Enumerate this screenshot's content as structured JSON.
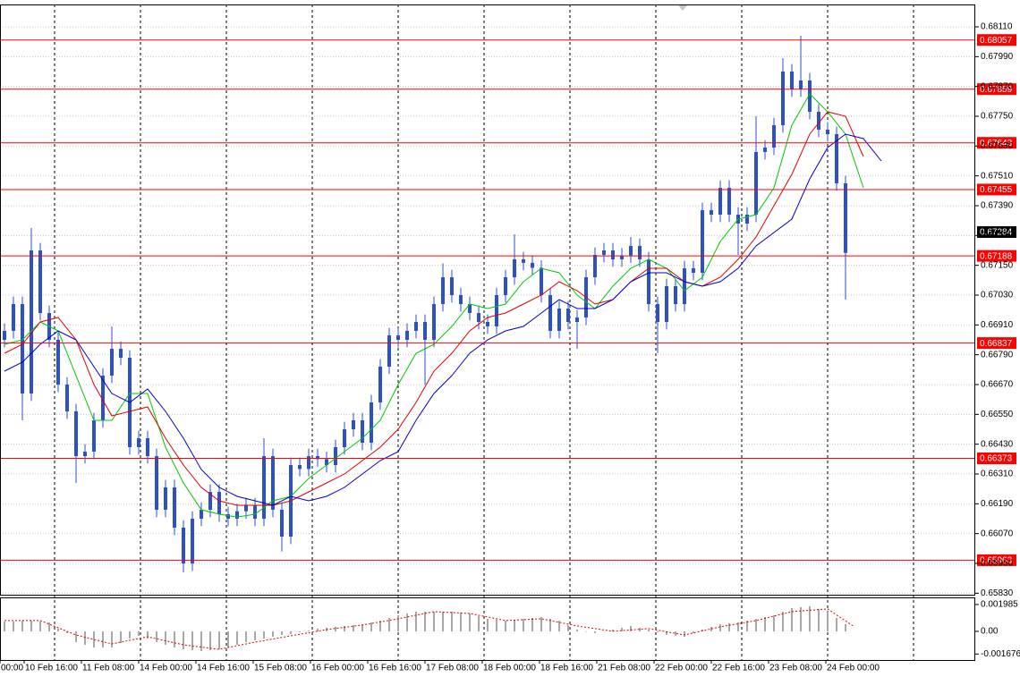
{
  "chart_data": {
    "type": "candlestick",
    "color": "#2c50c8",
    "grid": true,
    "xlim": [
      -0.5,
      108.5
    ],
    "xticks": [
      {
        "value": -0.5,
        "label": "00:00"
      },
      {
        "value": 2.2,
        "label": "10 Feb 16:00"
      },
      {
        "value": 8.6,
        "label": "11 Feb 08:00"
      },
      {
        "value": 15,
        "label": "14 Feb 00:00"
      },
      {
        "value": 21.4,
        "label": "14 Feb 16:00"
      },
      {
        "value": 27.8,
        "label": "15 Feb 08:00"
      },
      {
        "value": 34.2,
        "label": "16 Feb 00:00"
      },
      {
        "value": 40.6,
        "label": "16 Feb 16:00"
      },
      {
        "value": 47,
        "label": "17 Feb 08:00"
      },
      {
        "value": 53.4,
        "label": "18 Feb 00:00"
      },
      {
        "value": 59.8,
        "label": "18 Feb 16:00"
      },
      {
        "value": 66.2,
        "label": "21 Feb 08:00"
      },
      {
        "value": 72.6,
        "label": "22 Feb 00:00"
      },
      {
        "value": 79,
        "label": "22 Feb 16:00"
      },
      {
        "value": 85.4,
        "label": "23 Feb 08:00"
      },
      {
        "value": 91.8,
        "label": "24 Feb 00:00"
      }
    ],
    "xgrid": [
      5.6,
      15.2,
      24.8,
      34.4,
      44,
      53.6,
      63.2,
      72.8,
      82.4,
      92,
      101.6
    ],
    "ylim": [
      0.65824,
      0.682
    ],
    "yticks": [
      {
        "value": 0.6811,
        "label": "0.68110"
      },
      {
        "value": 0.6799,
        "label": "0.67990"
      },
      {
        "value": 0.6787,
        "label": "0.67870"
      },
      {
        "value": 0.6775,
        "label": "0.67750"
      },
      {
        "value": 0.6763,
        "label": "0.67630"
      },
      {
        "value": 0.6751,
        "label": "0.67510"
      },
      {
        "value": 0.6739,
        "label": "0.67390"
      },
      {
        "value": 0.6727,
        "label": "0.67270"
      },
      {
        "value": 0.6715,
        "label": "0.67150"
      },
      {
        "value": 0.6703,
        "label": "0.67030"
      },
      {
        "value": 0.6691,
        "label": "0.66910"
      },
      {
        "value": 0.6679,
        "label": "0.66790"
      },
      {
        "value": 0.6667,
        "label": "0.66670"
      },
      {
        "value": 0.6655,
        "label": "0.66550"
      },
      {
        "value": 0.6643,
        "label": "0.66430"
      },
      {
        "value": 0.6631,
        "label": "0.66310"
      },
      {
        "value": 0.6619,
        "label": "0.66190"
      },
      {
        "value": 0.6607,
        "label": "0.66070"
      },
      {
        "value": 0.6595,
        "label": "0.65950"
      },
      {
        "value": 0.6583,
        "label": "0.65830"
      }
    ],
    "open": [
      0.6685,
      0.66886,
      0.66994,
      0.66634,
      0.6721,
      0.66958,
      0.6685,
      0.6667,
      0.66562,
      0.66382,
      0.664,
      0.66526,
      0.66706,
      0.66814,
      0.66778,
      0.66418,
      0.66454,
      0.66382,
      0.66166,
      0.66256,
      0.66094,
      0.6595,
      0.6613,
      0.66166,
      0.66238,
      0.66148,
      0.6613,
      0.6616,
      0.66184,
      0.6613,
      0.66382,
      0.66166,
      0.66058,
      0.66346,
      0.6633,
      0.66382,
      0.6637,
      0.66346,
      0.66418,
      0.6649,
      0.66526,
      0.66436,
      0.66598,
      0.66742,
      0.66868,
      0.6685,
      0.66886,
      0.66922,
      0.6685,
      0.66994,
      0.67102,
      0.6703,
      0.66994,
      0.66958,
      0.66922,
      0.66904,
      0.6703,
      0.67102,
      0.67174,
      0.6716,
      0.6714,
      0.6703,
      0.66886,
      0.66976,
      0.66922,
      0.6694,
      0.67102,
      0.67192,
      0.6721,
      0.67174,
      0.6719,
      0.67228,
      0.67174,
      0.66994,
      0.66922,
      0.67066,
      0.66994,
      0.67138,
      0.6712,
      0.67372,
      0.67354,
      0.67462,
      0.67354,
      0.67318,
      0.67354,
      0.67606,
      0.67624,
      0.67714,
      0.6793,
      0.67858,
      0.67894,
      0.67768,
      0.67696,
      0.67678,
      0.6748
    ],
    "high": [
      0.66916,
      0.67024,
      0.67024,
      0.673,
      0.6724,
      0.66988,
      0.6688,
      0.667,
      0.66592,
      0.6643,
      0.66556,
      0.66736,
      0.66904,
      0.66844,
      0.66808,
      0.66484,
      0.66484,
      0.66412,
      0.66286,
      0.66286,
      0.66124,
      0.6616,
      0.66196,
      0.66268,
      0.66268,
      0.66178,
      0.6619,
      0.66214,
      0.66214,
      0.66454,
      0.66412,
      0.66196,
      0.66376,
      0.66376,
      0.66412,
      0.66412,
      0.664,
      0.66448,
      0.6652,
      0.66556,
      0.66556,
      0.66628,
      0.66772,
      0.66898,
      0.66898,
      0.66916,
      0.66952,
      0.66952,
      0.67024,
      0.67158,
      0.67132,
      0.6706,
      0.67024,
      0.66988,
      0.66952,
      0.6706,
      0.67132,
      0.67275,
      0.67204,
      0.6719,
      0.6717,
      0.6706,
      0.67006,
      0.67006,
      0.6697,
      0.67132,
      0.67222,
      0.6724,
      0.6724,
      0.6722,
      0.67264,
      0.67258,
      0.67204,
      0.67024,
      0.67096,
      0.67096,
      0.67168,
      0.67168,
      0.67402,
      0.67402,
      0.67492,
      0.67492,
      0.67384,
      0.67384,
      0.6775,
      0.67654,
      0.67744,
      0.67984,
      0.6796,
      0.68074,
      0.67924,
      0.67798,
      0.67726,
      0.67708,
      0.6751
    ],
    "low": [
      0.6682,
      0.66856,
      0.66526,
      0.66604,
      0.66928,
      0.6682,
      0.6664,
      0.66532,
      0.66274,
      0.66352,
      0.6637,
      0.66496,
      0.66676,
      0.66748,
      0.66388,
      0.66388,
      0.66352,
      0.66136,
      0.66136,
      0.66064,
      0.65914,
      0.6592,
      0.661,
      0.66136,
      0.66118,
      0.661,
      0.661,
      0.6613,
      0.661,
      0.661,
      0.66136,
      0.65998,
      0.66028,
      0.663,
      0.663,
      0.6634,
      0.66316,
      0.66316,
      0.66388,
      0.6646,
      0.66406,
      0.66406,
      0.66568,
      0.66712,
      0.6682,
      0.6682,
      0.66856,
      0.6667,
      0.6682,
      0.66964,
      0.67,
      0.66964,
      0.66928,
      0.66892,
      0.66874,
      0.66874,
      0.67,
      0.67072,
      0.6713,
      0.6711,
      0.67,
      0.66856,
      0.66856,
      0.66892,
      0.66814,
      0.6691,
      0.67072,
      0.67162,
      0.67144,
      0.67144,
      0.6716,
      0.67144,
      0.66964,
      0.66796,
      0.66892,
      0.66964,
      0.66964,
      0.6709,
      0.6709,
      0.67324,
      0.67324,
      0.67324,
      0.67192,
      0.67288,
      0.67324,
      0.67576,
      0.67594,
      0.67684,
      0.67828,
      0.67828,
      0.67738,
      0.67666,
      0.67648,
      0.6745,
      0.67012
    ],
    "close": [
      0.66886,
      0.66994,
      0.66634,
      0.6721,
      0.66958,
      0.6685,
      0.6667,
      0.66562,
      0.66382,
      0.664,
      0.66526,
      0.66706,
      0.66814,
      0.66778,
      0.66418,
      0.66454,
      0.66382,
      0.66166,
      0.66256,
      0.66094,
      0.6595,
      0.6613,
      0.66166,
      0.66238,
      0.66148,
      0.6613,
      0.6616,
      0.66184,
      0.6613,
      0.66382,
      0.66166,
      0.66058,
      0.66346,
      0.6633,
      0.66382,
      0.6637,
      0.66346,
      0.66418,
      0.6649,
      0.66526,
      0.66436,
      0.66598,
      0.66742,
      0.66868,
      0.6685,
      0.66886,
      0.66922,
      0.6685,
      0.66994,
      0.67102,
      0.6703,
      0.66994,
      0.66958,
      0.66922,
      0.66904,
      0.6703,
      0.67102,
      0.67174,
      0.6716,
      0.6714,
      0.6703,
      0.66886,
      0.66976,
      0.66922,
      0.6694,
      0.67102,
      0.67192,
      0.6721,
      0.67174,
      0.6719,
      0.67228,
      0.67174,
      0.66994,
      0.66922,
      0.67066,
      0.66994,
      0.67138,
      0.6712,
      0.67372,
      0.67354,
      0.67462,
      0.67354,
      0.67318,
      0.67354,
      0.67606,
      0.67624,
      0.67714,
      0.6793,
      0.67858,
      0.67894,
      0.67768,
      0.67696,
      0.67678,
      0.6748,
      0.672
    ],
    "moving_averages": [
      {
        "color": "#00c800",
        "x": [
          0,
          2,
          4,
          6,
          8,
          10,
          12,
          14,
          16,
          18,
          20,
          22,
          24,
          26,
          28,
          30,
          32,
          34,
          36,
          38,
          40,
          42,
          44,
          46,
          48,
          50,
          52,
          54,
          56,
          58,
          60,
          62,
          64,
          66,
          68,
          70,
          72,
          74,
          76,
          78,
          80,
          82,
          84,
          86,
          88,
          90,
          92,
          94,
          96
        ],
        "values": [
          0.66832,
          0.6685,
          0.66922,
          0.66886,
          0.66706,
          0.66526,
          0.66526,
          0.66634,
          0.66634,
          0.66418,
          0.66274,
          0.66166,
          0.66148,
          0.66137,
          0.66148,
          0.66202,
          0.6622,
          0.66292,
          0.66346,
          0.664,
          0.66454,
          0.66526,
          0.6667,
          0.66796,
          0.66832,
          0.66904,
          0.66994,
          0.66976,
          0.66994,
          0.67084,
          0.67138,
          0.6712,
          0.6703,
          0.66976,
          0.67066,
          0.67138,
          0.67174,
          0.67138,
          0.67048,
          0.67102,
          0.67246,
          0.67336,
          0.67354,
          0.67462,
          0.67714,
          0.6784,
          0.67768,
          0.67678,
          0.67462
        ]
      },
      {
        "color": "#e00000",
        "x": [
          0,
          2,
          4,
          6,
          8,
          10,
          12,
          14,
          16,
          18,
          20,
          22,
          24,
          26,
          28,
          30,
          32,
          34,
          36,
          38,
          40,
          42,
          44,
          46,
          48,
          50,
          52,
          54,
          56,
          58,
          60,
          62,
          64,
          66,
          68,
          70,
          72,
          74,
          76,
          78,
          80,
          82,
          84,
          86,
          88,
          90,
          92,
          94,
          96
        ],
        "values": [
          0.66796,
          0.66832,
          0.66922,
          0.6694,
          0.6685,
          0.6667,
          0.66544,
          0.66562,
          0.6658,
          0.66454,
          0.66346,
          0.66256,
          0.66202,
          0.66184,
          0.66184,
          0.66184,
          0.66202,
          0.66238,
          0.66274,
          0.6631,
          0.66364,
          0.66418,
          0.6649,
          0.66598,
          0.66724,
          0.66796,
          0.66886,
          0.6694,
          0.66958,
          0.66994,
          0.6703,
          0.67084,
          0.67048,
          0.66994,
          0.67012,
          0.67084,
          0.67138,
          0.67138,
          0.67084,
          0.67066,
          0.67102,
          0.67174,
          0.67264,
          0.6739,
          0.67516,
          0.67678,
          0.67768,
          0.6775,
          0.67588
        ]
      },
      {
        "color": "#0000c8",
        "x": [
          0,
          2,
          4,
          6,
          8,
          10,
          12,
          14,
          16,
          18,
          20,
          22,
          24,
          26,
          28,
          30,
          32,
          34,
          36,
          38,
          40,
          42,
          44,
          46,
          48,
          50,
          52,
          54,
          56,
          58,
          60,
          62,
          64,
          66,
          68,
          70,
          72,
          74,
          76,
          78,
          80,
          82,
          84,
          86,
          88,
          90,
          92,
          94,
          96,
          98
        ],
        "values": [
          0.66724,
          0.6676,
          0.66832,
          0.66886,
          0.6685,
          0.66742,
          0.66634,
          0.66598,
          0.66652,
          0.66562,
          0.66454,
          0.66328,
          0.66256,
          0.6622,
          0.66202,
          0.66184,
          0.6622,
          0.66202,
          0.6622,
          0.66256,
          0.6631,
          0.66364,
          0.664,
          0.66526,
          0.66634,
          0.66706,
          0.66796,
          0.6685,
          0.66886,
          0.66904,
          0.66958,
          0.67012,
          0.66976,
          0.66976,
          0.67012,
          0.67084,
          0.6712,
          0.6712,
          0.67084,
          0.67066,
          0.67084,
          0.67138,
          0.67228,
          0.67282,
          0.67336,
          0.67498,
          0.67624,
          0.67678,
          0.6766,
          0.6757
        ]
      }
    ],
    "level_color": "#ff0000",
    "levels": [
      0.68057,
      0.67859,
      0.67643,
      0.67455,
      0.67188,
      0.66837,
      0.66373,
      0.65963
    ],
    "last_price": 0.67284,
    "indicator": {
      "ylim": [
        -0.00212,
        0.00251
      ],
      "yticks": [
        0.001985,
        {
          "value": 0,
          "label": "0.00"
        },
        -0.001676
      ],
      "histogram_color": "#a8a8a8",
      "histogram": [
        0.000728,
        0.000728,
        0.000794,
        0.000794,
        0.000728,
        0.000662,
        0.000199,
        -0.000132,
        -0.000794,
        -0.000993,
        -0.001192,
        -0.001192,
        -0.001192,
        -0.000861,
        -0.00053,
        -0.000331,
        -0.00053,
        -0.000794,
        -0.000993,
        -0.001192,
        -0.001324,
        -0.00139,
        -0.001456,
        -0.00139,
        -0.001324,
        -0.001192,
        -0.000993,
        -0.000794,
        -0.000662,
        -0.00053,
        -0.000397,
        -0.000265,
        -0.000199,
        -6.6e-05,
        6.6e-05,
        0.000199,
        0.000265,
        0.000331,
        0.000397,
        0.000463,
        0.00053,
        0.000662,
        0.000794,
        0.000993,
        0.001192,
        0.001324,
        0.001456,
        0.001456,
        0.001456,
        0.001456,
        0.001456,
        0.00139,
        0.001324,
        0.001125,
        0.000927,
        0.000861,
        0.000794,
        0.000861,
        0.000927,
        0.000993,
        0.001059,
        0.000927,
        0.000794,
        0.000463,
        0.000132,
        0,
        -0.000132,
        0,
        0.000132,
        0.000265,
        0.000397,
        0.000265,
        0.000132,
        -6.6e-05,
        -0.000265,
        -0.000331,
        -0.000397,
        -0.000132,
        0.000132,
        0.000331,
        0.00053,
        0.000596,
        0.000662,
        0.000794,
        0.000927,
        0.001059,
        0.001192,
        0.001456,
        0.001721,
        0.001787,
        0.001854,
        0.001655,
        0.001456,
        0.000993,
        0.00053
      ],
      "signal_color": "#e00000",
      "signal": {
        "x": [
          0,
          4,
          8,
          12,
          16,
          20,
          24,
          28,
          32,
          36,
          40,
          44,
          48,
          52,
          56,
          60,
          64,
          68,
          72,
          76,
          80,
          84,
          88,
          92,
          95
        ],
        "values": [
          0.000794,
          0.000794,
          -0.000265,
          -0.000927,
          -0.000397,
          -0.000993,
          -0.001324,
          -0.000794,
          -0.000331,
          0.000132,
          0.000463,
          0.000927,
          0.001456,
          0.001324,
          0.000794,
          0.000927,
          0.000397,
          0,
          0.000199,
          -0.000265,
          0.000331,
          0.000794,
          0.001456,
          0.001655,
          0.000331
        ]
      }
    }
  }
}
